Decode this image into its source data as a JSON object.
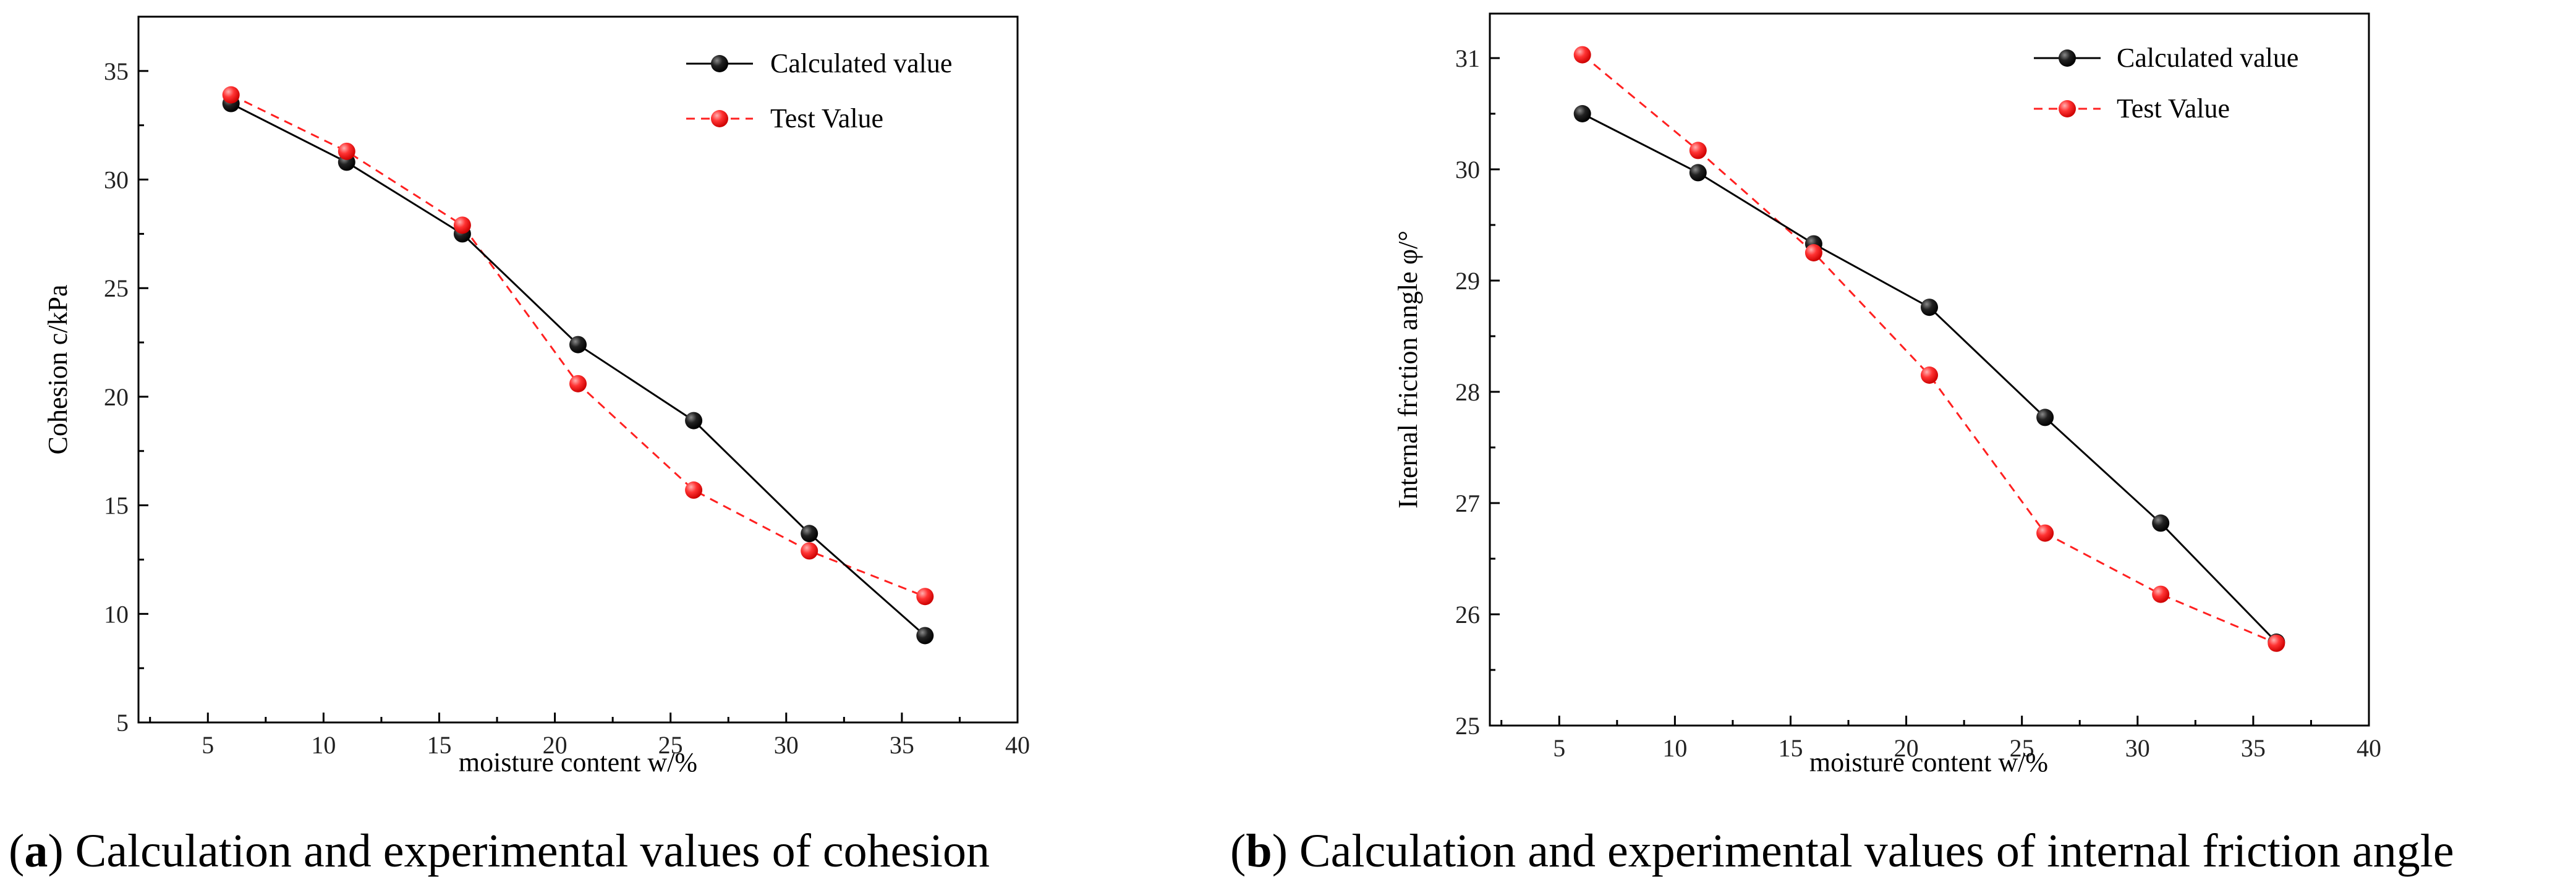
{
  "colors": {
    "calculated": "#000000",
    "test": "#ff2a2a",
    "calculated_marker_highlight": "#777777",
    "test_marker_highlight": "#ff9a9a"
  },
  "chart_data": [
    {
      "id": "a",
      "type": "line",
      "caption_letter": "a",
      "caption_paren_open": "(",
      "caption_paren_close": ")",
      "caption_text": " Calculation and experimental values of cohesion",
      "xlabel": "moisture content  w/%",
      "ylabel": "Cohesion c/kPa",
      "xlim": [
        2,
        40
      ],
      "ylim": [
        5,
        37.5
      ],
      "xticks": [
        5,
        10,
        15,
        20,
        25,
        30,
        35,
        40
      ],
      "yticks": [
        5,
        10,
        15,
        20,
        25,
        30,
        35
      ],
      "legend_position": "top-right",
      "series": [
        {
          "name": "Calculated value",
          "style": "solid",
          "x": [
            6,
            11,
            16,
            21,
            26,
            31,
            36
          ],
          "y": [
            33.5,
            30.8,
            27.5,
            22.4,
            18.9,
            13.7,
            9.0
          ]
        },
        {
          "name": "Test Value",
          "style": "dashed",
          "x": [
            6,
            11,
            16,
            21,
            26,
            31,
            36
          ],
          "y": [
            33.9,
            31.3,
            27.9,
            20.6,
            15.7,
            12.9,
            10.8
          ]
        }
      ]
    },
    {
      "id": "b",
      "type": "line",
      "caption_letter": "b",
      "caption_paren_open": "(",
      "caption_paren_close": ")",
      "caption_text": " Calculation and experimental values of internal friction angle",
      "xlabel": "moisture content  w/%",
      "ylabel": "Internal friction angle  φ/°",
      "xlim": [
        2,
        40
      ],
      "ylim": [
        25,
        31.4
      ],
      "xticks": [
        5,
        10,
        15,
        20,
        25,
        30,
        35,
        40
      ],
      "yticks": [
        25,
        26,
        27,
        28,
        29,
        30,
        31
      ],
      "legend_position": "top-right",
      "series": [
        {
          "name": "Calculated value",
          "style": "solid",
          "x": [
            6,
            11,
            16,
            21,
            26,
            31,
            36
          ],
          "y": [
            30.5,
            29.97,
            29.33,
            28.76,
            27.77,
            26.82,
            25.75
          ]
        },
        {
          "name": "Test Value",
          "style": "dashed",
          "x": [
            6,
            11,
            16,
            21,
            26,
            31,
            36
          ],
          "y": [
            31.03,
            30.17,
            29.25,
            28.15,
            26.73,
            26.18,
            25.74
          ]
        }
      ]
    }
  ]
}
